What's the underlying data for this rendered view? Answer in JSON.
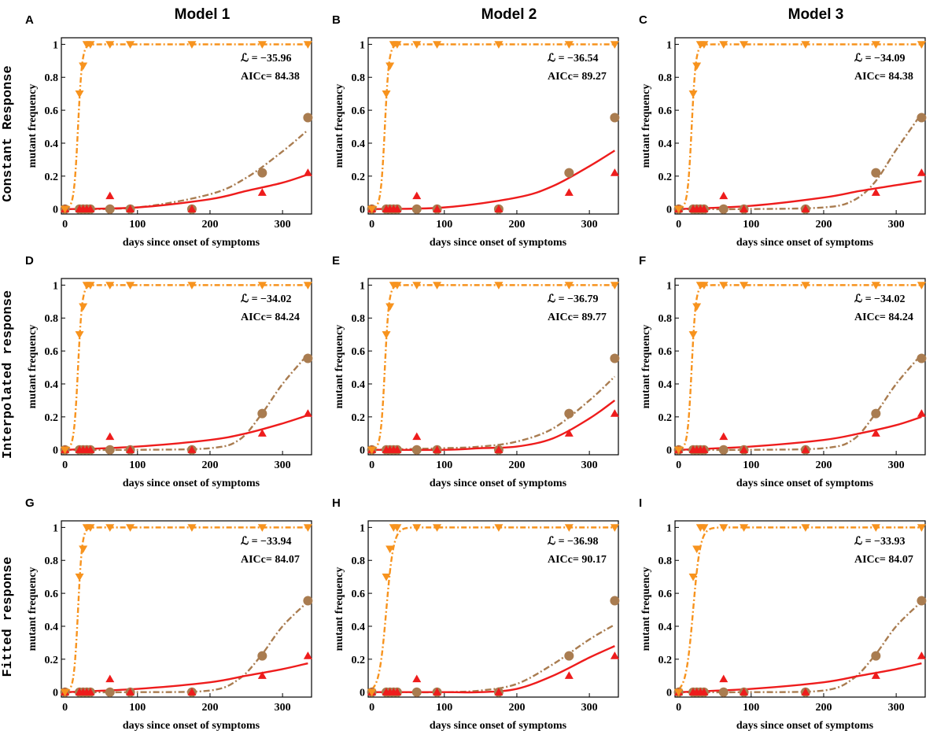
{
  "chart_data": {
    "type": "scatter",
    "column_titles": [
      "Model 1",
      "Model 2",
      "Model 3"
    ],
    "row_titles": [
      "Constant Response",
      "Interpolated response",
      "Fitted response"
    ],
    "xlabel": "days since onset of symptoms",
    "ylabel": "mutant frequency",
    "xlim": [
      -5,
      340
    ],
    "ylim": [
      -0.03,
      1.04
    ],
    "xticks": [
      0,
      100,
      200,
      300
    ],
    "xtick_labels": [
      "0",
      "100",
      "200",
      "300"
    ],
    "yticks": [
      0,
      0.2,
      0.4,
      0.6,
      0.8,
      1
    ],
    "ytick_labels": [
      "0",
      "0.2",
      "0.4",
      "0.6",
      "0.8",
      "1"
    ],
    "series_styles": [
      {
        "name": "orange (down triangles)",
        "color": "#f7931e",
        "marker": "triangle-down",
        "dashed": true
      },
      {
        "name": "brown (circles)",
        "color": "#a97c50",
        "marker": "circle",
        "dashed": true
      },
      {
        "name": "red (up triangles)",
        "color": "#ee1c1c",
        "marker": "triangle-up",
        "dashed": false
      }
    ],
    "observations": {
      "orange": {
        "x": [
          0,
          20,
          25,
          30,
          35,
          62,
          90,
          175,
          272,
          335
        ],
        "y": [
          0,
          0.7,
          0.87,
          1,
          1,
          1,
          1,
          1,
          1,
          1
        ]
      },
      "brown": {
        "x": [
          0,
          20,
          25,
          30,
          35,
          62,
          90,
          175,
          272,
          335
        ],
        "y": [
          0,
          0,
          0,
          0,
          0,
          0,
          0,
          0,
          0.22,
          0.555
        ]
      },
      "red": {
        "x": [
          0,
          20,
          25,
          30,
          35,
          62,
          90,
          175,
          272,
          335
        ],
        "y": [
          0,
          0,
          0,
          0,
          0,
          0.08,
          0,
          0,
          0.1,
          0.22
        ]
      }
    },
    "panels": [
      {
        "letter": "A",
        "lik_label": "ℒ = −35.96",
        "aic_label": "AICc= 84.38",
        "orange_fit": {
          "x0": 18,
          "k": 0.35
        },
        "brown_fit": {
          "x": [
            0,
            100,
            200,
            250,
            300,
            335
          ],
          "y": [
            0,
            0.01,
            0.09,
            0.19,
            0.35,
            0.48
          ]
        },
        "red_fit": {
          "x": [
            0,
            100,
            200,
            250,
            300,
            335
          ],
          "y": [
            0,
            0.01,
            0.06,
            0.11,
            0.16,
            0.21
          ]
        }
      },
      {
        "letter": "B",
        "lik_label": "ℒ = −36.54",
        "aic_label": "AICc= 89.27",
        "orange_fit": {
          "x0": 18,
          "k": 0.35
        },
        "brown_fit": null,
        "red_fit": {
          "x": [
            0,
            100,
            200,
            250,
            300,
            335
          ],
          "y": [
            0,
            0.01,
            0.07,
            0.14,
            0.26,
            0.355
          ]
        }
      },
      {
        "letter": "C",
        "lik_label": "ℒ = −34.09",
        "aic_label": "AICc= 84.38",
        "orange_fit": {
          "x0": 18,
          "k": 0.35
        },
        "brown_fit": {
          "x": [
            0,
            100,
            200,
            240,
            270,
            300,
            335
          ],
          "y": [
            0,
            0,
            0.01,
            0.05,
            0.16,
            0.36,
            0.58
          ]
        },
        "red_fit": {
          "x": [
            0,
            100,
            200,
            250,
            300,
            335
          ],
          "y": [
            0,
            0.02,
            0.07,
            0.11,
            0.145,
            0.17
          ]
        }
      },
      {
        "letter": "D",
        "lik_label": "ℒ = −34.02",
        "aic_label": "AICc= 84.24",
        "orange_fit": {
          "x0": 18,
          "k": 0.35
        },
        "brown_fit": {
          "x": [
            0,
            100,
            200,
            240,
            270,
            300,
            335
          ],
          "y": [
            0,
            0,
            0.01,
            0.06,
            0.21,
            0.4,
            0.58
          ]
        },
        "red_fit": {
          "x": [
            0,
            100,
            200,
            250,
            300,
            335
          ],
          "y": [
            0,
            0.02,
            0.06,
            0.1,
            0.16,
            0.21
          ]
        }
      },
      {
        "letter": "E",
        "lik_label": "ℒ = −36.79",
        "aic_label": "AICc= 89.77",
        "orange_fit": {
          "x0": 18,
          "k": 0.35
        },
        "brown_fit": {
          "x": [
            0,
            100,
            150,
            200,
            250,
            300,
            335
          ],
          "y": [
            0,
            0.01,
            0.02,
            0.05,
            0.13,
            0.3,
            0.445
          ]
        },
        "red_fit": {
          "x": [
            0,
            100,
            150,
            200,
            250,
            300,
            335
          ],
          "y": [
            0,
            0,
            0.01,
            0.02,
            0.07,
            0.19,
            0.3
          ]
        }
      },
      {
        "letter": "F",
        "lik_label": "ℒ = −34.02",
        "aic_label": "AICc= 84.24",
        "orange_fit": {
          "x0": 18,
          "k": 0.35
        },
        "brown_fit": {
          "x": [
            0,
            100,
            200,
            240,
            270,
            300,
            335
          ],
          "y": [
            0,
            0,
            0.01,
            0.06,
            0.21,
            0.4,
            0.58
          ]
        },
        "red_fit": {
          "x": [
            0,
            100,
            200,
            250,
            300,
            335
          ],
          "y": [
            0,
            0.02,
            0.06,
            0.1,
            0.15,
            0.2
          ]
        }
      },
      {
        "letter": "G",
        "lik_label": "ℒ = −33.94",
        "aic_label": "AICc= 84.07",
        "orange_fit": {
          "x0": 18,
          "k": 0.35
        },
        "brown_fit": {
          "x": [
            0,
            100,
            200,
            240,
            270,
            300,
            335
          ],
          "y": [
            0,
            0,
            0.01,
            0.08,
            0.22,
            0.4,
            0.55
          ]
        },
        "red_fit": {
          "x": [
            0,
            100,
            200,
            250,
            300,
            335
          ],
          "y": [
            0,
            0.02,
            0.06,
            0.1,
            0.14,
            0.175
          ]
        }
      },
      {
        "letter": "H",
        "lik_label": "ℒ = −36.98",
        "aic_label": "AICc= 90.17",
        "orange_fit": {
          "x0": 20,
          "k": 0.2
        },
        "brown_fit": {
          "x": [
            0,
            100,
            150,
            200,
            250,
            300,
            335
          ],
          "y": [
            0,
            0,
            0.01,
            0.05,
            0.17,
            0.32,
            0.41
          ]
        },
        "red_fit": {
          "x": [
            0,
            100,
            150,
            200,
            250,
            300,
            335
          ],
          "y": [
            0,
            0,
            0,
            0.02,
            0.1,
            0.21,
            0.28
          ]
        }
      },
      {
        "letter": "I",
        "lik_label": "ℒ = −33.93",
        "aic_label": "AICc= 84.07",
        "orange_fit": {
          "x0": 20,
          "k": 0.2
        },
        "brown_fit": {
          "x": [
            0,
            100,
            200,
            240,
            270,
            300,
            335
          ],
          "y": [
            0,
            0,
            0.01,
            0.08,
            0.22,
            0.4,
            0.55
          ]
        },
        "red_fit": {
          "x": [
            0,
            100,
            200,
            250,
            300,
            335
          ],
          "y": [
            0,
            0.02,
            0.06,
            0.1,
            0.14,
            0.175
          ]
        }
      }
    ]
  }
}
